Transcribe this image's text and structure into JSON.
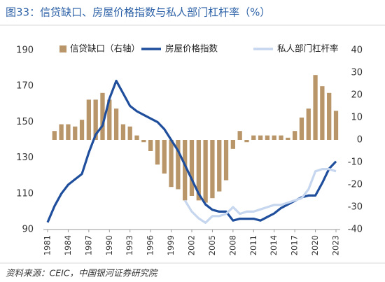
{
  "chart_data": {
    "type": "combo",
    "title": "图33：信贷缺口、房屋价格指数与私人部门杠杆率（%）",
    "x": [
      1981,
      1982,
      1983,
      1984,
      1985,
      1986,
      1987,
      1988,
      1989,
      1990,
      1991,
      1992,
      1993,
      1994,
      1995,
      1996,
      1997,
      1998,
      1999,
      2000,
      2001,
      2002,
      2003,
      2004,
      2005,
      2006,
      2007,
      2008,
      2009,
      2010,
      2011,
      2012,
      2013,
      2014,
      2015,
      2016,
      2017,
      2018,
      2019,
      2020,
      2021,
      2022,
      2023
    ],
    "xlim": [
      1981,
      2023
    ],
    "xticks": [
      1981,
      1984,
      1987,
      1990,
      1993,
      1996,
      1999,
      2002,
      2005,
      2008,
      2011,
      2014,
      2017,
      2020,
      2023
    ],
    "ylim": [
      90,
      190
    ],
    "yticks": [
      90,
      110,
      130,
      150,
      170,
      190
    ],
    "y2lim": [
      -40,
      40
    ],
    "y2ticks": [
      -40,
      -30,
      -20,
      -10,
      0,
      10,
      20,
      30,
      40
    ],
    "series": [
      {
        "name": "信贷缺口（右轴）",
        "type": "bar",
        "axis": "y2",
        "color": "#b8966a",
        "values": [
          0,
          4,
          7,
          7,
          6,
          9,
          18,
          18,
          21,
          18,
          14,
          7,
          6,
          2,
          -1,
          -5,
          -11,
          -15,
          -21,
          -22,
          -27,
          -25,
          -27,
          -28,
          -26,
          -23,
          -18,
          -4,
          4,
          -1,
          2,
          2,
          2,
          2,
          2,
          1,
          4,
          10,
          14,
          29,
          24,
          21,
          13
        ]
      },
      {
        "name": "房屋价格指数",
        "type": "line",
        "color": "#1f4e9c",
        "values": [
          94,
          103,
          110,
          115,
          118,
          121,
          133,
          143,
          148,
          163,
          173,
          166,
          159,
          156,
          154,
          152,
          150,
          146,
          140,
          134,
          126,
          118,
          110,
          104,
          101,
          100,
          100,
          95,
          96,
          96,
          96,
          95,
          97,
          99,
          102,
          104,
          106,
          108,
          109,
          109,
          116,
          124,
          128
        ]
      },
      {
        "name": "私人部门杠杆率",
        "type": "line",
        "axis": "y2",
        "color": "#c5d6ee",
        "values": [
          null,
          null,
          null,
          null,
          null,
          null,
          null,
          null,
          null,
          null,
          null,
          null,
          null,
          null,
          null,
          null,
          null,
          null,
          null,
          null,
          -27,
          -32,
          -35,
          -37,
          -34,
          -34,
          -33,
          -30,
          -33,
          -32,
          -32,
          -31,
          -30,
          -29,
          -29,
          -28,
          -27,
          -26,
          -22,
          -14,
          -13,
          -13,
          -14
        ]
      }
    ]
  },
  "source": "资料来源：CEIC，中国银河证券研究院"
}
